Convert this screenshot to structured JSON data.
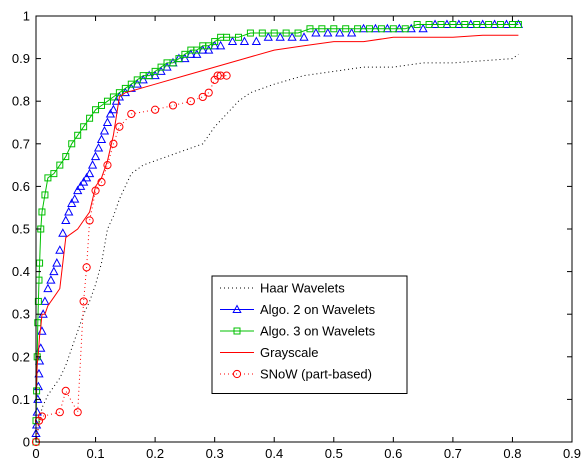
{
  "chart_data": {
    "type": "line",
    "xlim": [
      0,
      0.9
    ],
    "ylim": [
      0,
      1
    ],
    "x_ticks": [
      0,
      0.1,
      0.2,
      0.3,
      0.4,
      0.5,
      0.6,
      0.7,
      0.8,
      0.9
    ],
    "x_tick_labels": [
      "0",
      "0.1",
      "0.2",
      "0.3",
      "0.4",
      "0.5",
      "0.6",
      "0.7",
      "0.8",
      "0.9"
    ],
    "y_ticks": [
      0,
      0.1,
      0.2,
      0.3,
      0.4,
      0.5,
      0.6,
      0.7,
      0.8,
      0.9,
      1
    ],
    "y_tick_labels": [
      "0",
      "0.1",
      "0.2",
      "0.3",
      "0.4",
      "0.5",
      "0.6",
      "0.7",
      "0.8",
      "0.9",
      "1"
    ],
    "grid": false,
    "legend_position": "lower-center",
    "series": [
      {
        "name": "Haar Wavelets",
        "color": "#000000",
        "line": "dotted",
        "marker": "none",
        "x": [
          0,
          0.005,
          0.01,
          0.02,
          0.04,
          0.05,
          0.06,
          0.07,
          0.08,
          0.09,
          0.1,
          0.11,
          0.12,
          0.13,
          0.14,
          0.15,
          0.16,
          0.18,
          0.2,
          0.22,
          0.24,
          0.26,
          0.28,
          0.3,
          0.32,
          0.34,
          0.36,
          0.4,
          0.45,
          0.5,
          0.55,
          0.6,
          0.65,
          0.7,
          0.8,
          0.81
        ],
        "y": [
          0,
          0.04,
          0.08,
          0.11,
          0.15,
          0.18,
          0.22,
          0.26,
          0.3,
          0.33,
          0.37,
          0.42,
          0.5,
          0.53,
          0.57,
          0.6,
          0.63,
          0.65,
          0.66,
          0.67,
          0.68,
          0.69,
          0.7,
          0.74,
          0.77,
          0.8,
          0.82,
          0.84,
          0.86,
          0.87,
          0.88,
          0.88,
          0.89,
          0.89,
          0.9,
          0.91
        ]
      },
      {
        "name": "Algo. 2 on Wavelets",
        "color": "#0000ff",
        "line": "none",
        "marker": "triangle",
        "x": [
          0,
          0.001,
          0.002,
          0.003,
          0.004,
          0.005,
          0.006,
          0.008,
          0.01,
          0.012,
          0.015,
          0.02,
          0.025,
          0.03,
          0.035,
          0.04,
          0.045,
          0.05,
          0.055,
          0.06,
          0.065,
          0.07,
          0.075,
          0.08,
          0.085,
          0.09,
          0.095,
          0.1,
          0.105,
          0.11,
          0.115,
          0.12,
          0.125,
          0.13,
          0.135,
          0.14,
          0.15,
          0.16,
          0.17,
          0.18,
          0.19,
          0.2,
          0.21,
          0.22,
          0.23,
          0.24,
          0.25,
          0.26,
          0.27,
          0.28,
          0.29,
          0.3,
          0.31,
          0.33,
          0.35,
          0.37,
          0.39,
          0.41,
          0.43,
          0.45,
          0.47,
          0.49,
          0.51,
          0.53,
          0.55,
          0.57,
          0.59,
          0.61,
          0.63,
          0.65,
          0.67,
          0.69,
          0.71,
          0.73,
          0.75,
          0.77,
          0.79,
          0.81
        ],
        "y": [
          0.02,
          0.04,
          0.07,
          0.1,
          0.13,
          0.16,
          0.19,
          0.22,
          0.26,
          0.3,
          0.33,
          0.36,
          0.38,
          0.4,
          0.42,
          0.45,
          0.49,
          0.52,
          0.54,
          0.56,
          0.57,
          0.59,
          0.6,
          0.61,
          0.62,
          0.63,
          0.65,
          0.67,
          0.69,
          0.71,
          0.73,
          0.75,
          0.77,
          0.78,
          0.8,
          0.81,
          0.82,
          0.83,
          0.84,
          0.85,
          0.86,
          0.86,
          0.87,
          0.88,
          0.89,
          0.9,
          0.9,
          0.91,
          0.91,
          0.92,
          0.92,
          0.93,
          0.93,
          0.94,
          0.94,
          0.94,
          0.95,
          0.95,
          0.95,
          0.95,
          0.96,
          0.96,
          0.96,
          0.96,
          0.97,
          0.97,
          0.97,
          0.97,
          0.97,
          0.97,
          0.98,
          0.98,
          0.98,
          0.98,
          0.98,
          0.98,
          0.98,
          0.98
        ]
      },
      {
        "name": "Algo. 3 on Wavelets",
        "color": "#00c000",
        "line": "solid",
        "marker": "square",
        "x": [
          0,
          0,
          0.001,
          0.002,
          0.003,
          0.004,
          0.005,
          0.006,
          0.008,
          0.01,
          0.015,
          0.02,
          0.03,
          0.04,
          0.05,
          0.06,
          0.07,
          0.08,
          0.09,
          0.1,
          0.11,
          0.12,
          0.13,
          0.14,
          0.15,
          0.16,
          0.17,
          0.18,
          0.19,
          0.2,
          0.21,
          0.22,
          0.23,
          0.24,
          0.25,
          0.26,
          0.27,
          0.28,
          0.29,
          0.3,
          0.31,
          0.32,
          0.34,
          0.36,
          0.38,
          0.4,
          0.42,
          0.44,
          0.46,
          0.48,
          0.5,
          0.52,
          0.54,
          0.56,
          0.58,
          0.6,
          0.62,
          0.64,
          0.66,
          0.68,
          0.7,
          0.72,
          0.74,
          0.76,
          0.78,
          0.8,
          0.81
        ],
        "y": [
          0,
          0.05,
          0.12,
          0.2,
          0.28,
          0.33,
          0.38,
          0.42,
          0.5,
          0.54,
          0.58,
          0.62,
          0.63,
          0.65,
          0.67,
          0.7,
          0.72,
          0.74,
          0.76,
          0.78,
          0.79,
          0.8,
          0.81,
          0.82,
          0.83,
          0.84,
          0.85,
          0.86,
          0.86,
          0.87,
          0.88,
          0.89,
          0.89,
          0.9,
          0.91,
          0.92,
          0.92,
          0.93,
          0.93,
          0.94,
          0.95,
          0.95,
          0.95,
          0.96,
          0.96,
          0.96,
          0.96,
          0.96,
          0.97,
          0.97,
          0.97,
          0.97,
          0.97,
          0.97,
          0.97,
          0.97,
          0.97,
          0.98,
          0.98,
          0.98,
          0.98,
          0.98,
          0.98,
          0.98,
          0.98,
          0.98,
          0.98
        ]
      },
      {
        "name": "Grayscale",
        "color": "#ff0000",
        "line": "solid",
        "marker": "none",
        "x": [
          0,
          0.002,
          0.004,
          0.006,
          0.008,
          0.01,
          0.015,
          0.02,
          0.03,
          0.04,
          0.05,
          0.06,
          0.07,
          0.08,
          0.09,
          0.1,
          0.11,
          0.12,
          0.13,
          0.14,
          0.15,
          0.2,
          0.25,
          0.3,
          0.35,
          0.4,
          0.45,
          0.5,
          0.55,
          0.6,
          0.65,
          0.7,
          0.75,
          0.8,
          0.81
        ],
        "y": [
          0.1,
          0.18,
          0.21,
          0.25,
          0.27,
          0.3,
          0.3,
          0.32,
          0.34,
          0.36,
          0.48,
          0.49,
          0.5,
          0.52,
          0.54,
          0.6,
          0.62,
          0.66,
          0.72,
          0.81,
          0.82,
          0.84,
          0.86,
          0.88,
          0.9,
          0.92,
          0.93,
          0.94,
          0.94,
          0.95,
          0.95,
          0.95,
          0.955,
          0.955,
          0.955
        ]
      },
      {
        "name": "SNoW (part-based)",
        "color": "#ff0000",
        "line": "dotted",
        "marker": "circle",
        "x": [
          0,
          0.005,
          0.01,
          0.04,
          0.05,
          0.07,
          0.08,
          0.085,
          0.09,
          0.1,
          0.11,
          0.12,
          0.13,
          0.14,
          0.16,
          0.2,
          0.23,
          0.26,
          0.28,
          0.29,
          0.3,
          0.305,
          0.31,
          0.32
        ],
        "y": [
          0,
          0.05,
          0.06,
          0.07,
          0.12,
          0.07,
          0.33,
          0.41,
          0.52,
          0.59,
          0.61,
          0.65,
          0.7,
          0.74,
          0.77,
          0.78,
          0.79,
          0.8,
          0.81,
          0.82,
          0.85,
          0.86,
          0.86,
          0.86
        ]
      }
    ]
  }
}
